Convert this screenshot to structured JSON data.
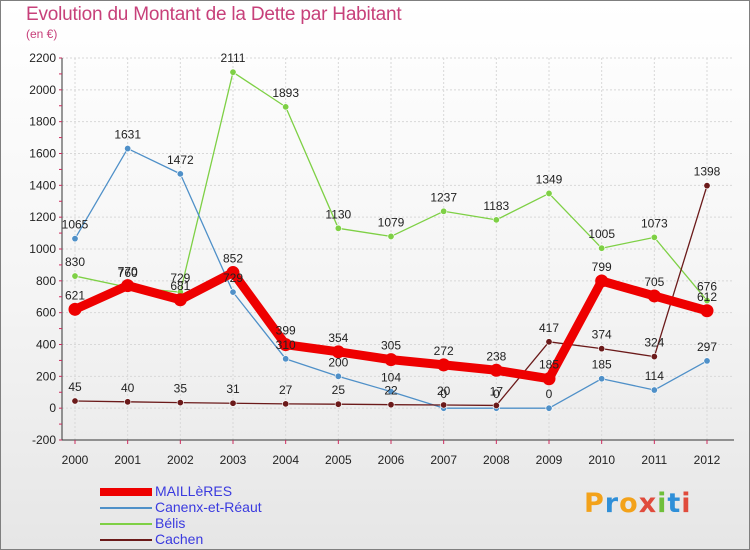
{
  "chart_data": {
    "type": "line",
    "title": "Evolution du Montant de la Dette par Habitant",
    "subtitle": "(en €)",
    "categories": [
      "2000",
      "2001",
      "2002",
      "2003",
      "2004",
      "2005",
      "2006",
      "2007",
      "2008",
      "2009",
      "2010",
      "2011",
      "2012"
    ],
    "ylim": [
      -200,
      2200
    ],
    "yticks": [
      "-200",
      "0",
      "200",
      "400",
      "600",
      "800",
      "1000",
      "1200",
      "1400",
      "1600",
      "1800",
      "2000",
      "2200"
    ],
    "grid": true,
    "legend_position": "bottom-left",
    "series": [
      {
        "name": "MAILLèRES",
        "color": "#ee0000",
        "values": [
          621,
          770,
          681,
          852,
          399,
          354,
          305,
          272,
          238,
          185,
          799,
          705,
          612
        ],
        "labels": [
          "621",
          "770",
          "681",
          "852",
          "399",
          "354",
          "305",
          "272",
          "238",
          "185",
          "799",
          "705",
          "612"
        ]
      },
      {
        "name": "Canenx-et-Réaut",
        "color": "#4f90c8",
        "values": [
          1065,
          1631,
          1472,
          729,
          310,
          200,
          104,
          0,
          0,
          0,
          185,
          114,
          297
        ],
        "labels": [
          "1065",
          "1631",
          "1472",
          "729",
          "310",
          "200",
          "104",
          "0",
          "0",
          "0",
          "185",
          "114",
          "297"
        ]
      },
      {
        "name": "Bélis",
        "color": "#7ed045",
        "values": [
          830,
          760,
          729,
          2111,
          1893,
          1130,
          1079,
          1237,
          1183,
          1349,
          1005,
          1073,
          676
        ],
        "labels": [
          "830",
          "760",
          "729",
          "2111",
          "1893",
          "1130",
          "1079",
          "1237",
          "1183",
          "1349",
          "1005",
          "1073",
          "676"
        ]
      },
      {
        "name": "Cachen",
        "color": "#6b1a1a",
        "values": [
          45,
          40,
          35,
          31,
          27,
          25,
          22,
          20,
          17,
          417,
          374,
          324,
          1398
        ],
        "labels": [
          "45",
          "40",
          "35",
          "31",
          "27",
          "25",
          "22",
          "20",
          "17",
          "417",
          "374",
          "324",
          "1398"
        ]
      }
    ]
  },
  "legend": {
    "items": [
      {
        "label": "MAILLèRES",
        "color": "#ee0000"
      },
      {
        "label": "Canenx-et-Réaut",
        "color": "#4f90c8"
      },
      {
        "label": "Bélis",
        "color": "#7ed045"
      },
      {
        "label": "Cachen",
        "color": "#6b1a1a"
      }
    ]
  },
  "logo": {
    "text": [
      "P",
      "r",
      "o",
      "x",
      "i",
      "t",
      "i"
    ]
  }
}
